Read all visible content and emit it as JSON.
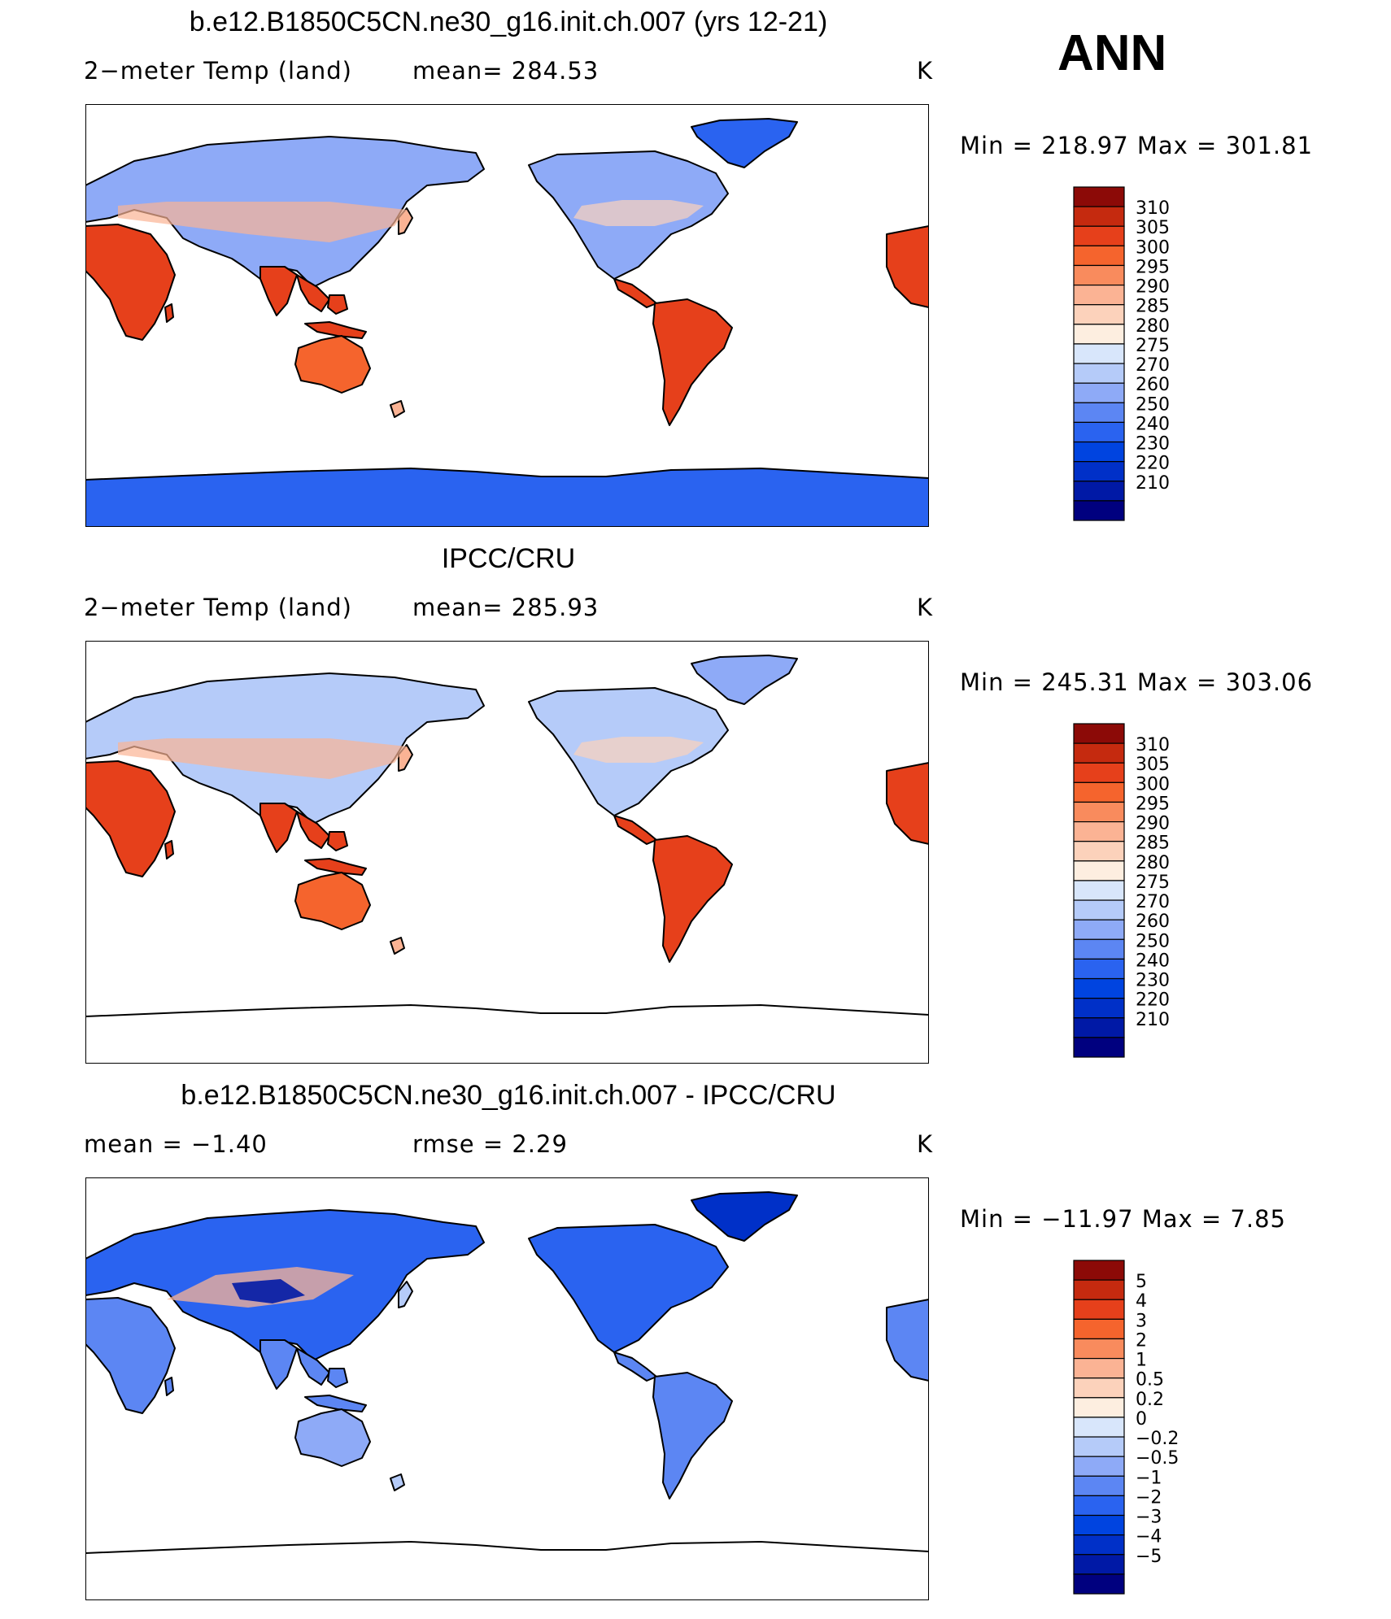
{
  "season": "ANN",
  "colors": {
    "temp_scale": [
      "#00007f",
      "#0019a6",
      "#0030c8",
      "#0044e0",
      "#2a63f0",
      "#5c86f3",
      "#8eaaf7",
      "#b5cbf9",
      "#d8e6fb",
      "#fdeee0",
      "#fcd2bb",
      "#fbb394",
      "#f98b5d",
      "#f5642d",
      "#e6401b",
      "#c52a0f",
      "#8c0a07"
    ],
    "diff_scale": [
      "#00007f",
      "#0019a6",
      "#0030c8",
      "#0044e0",
      "#2a63f0",
      "#5c86f3",
      "#8eaaf7",
      "#b5cbf9",
      "#d8e6fb",
      "#fdeee0",
      "#fcd2bb",
      "#fbb394",
      "#f98b5d",
      "#f5642d",
      "#e6401b",
      "#c52a0f",
      "#8c0a07"
    ]
  },
  "panels": [
    {
      "title": "b.e12.B1850C5CN.ne30_g16.init.ch.007 (yrs 12-21)",
      "left_label": "2−meter Temp (land)",
      "mid_label": "mean=  284.53",
      "units": "K",
      "minmax": "Min  =  218.97  Max  =  301.81",
      "colorbar_labels": [
        "310",
        "305",
        "300",
        "295",
        "290",
        "285",
        "280",
        "275",
        "270",
        "260",
        "250",
        "240",
        "230",
        "220",
        "210"
      ],
      "antarctica_filled": true,
      "style": "model"
    },
    {
      "title": "IPCC/CRU",
      "left_label": "2−meter Temp (land)",
      "mid_label": "mean=  285.93",
      "units": "K",
      "minmax": "Min  =  245.31  Max  =  303.06",
      "colorbar_labels": [
        "310",
        "305",
        "300",
        "295",
        "290",
        "285",
        "280",
        "275",
        "270",
        "260",
        "250",
        "240",
        "230",
        "220",
        "210"
      ],
      "antarctica_filled": false,
      "style": "obs"
    },
    {
      "title": "b.e12.B1850C5CN.ne30_g16.init.ch.007 - IPCC/CRU",
      "left_label": "mean  =    −1.40",
      "mid_label": "rmse  =     2.29",
      "units": "K",
      "minmax": "Min  =  −11.97  Max  =      7.85",
      "colorbar_labels": [
        "5",
        "4",
        "3",
        "2",
        "1",
        "0.5",
        "0.2",
        "0",
        "−0.2",
        "−0.5",
        "−1",
        "−2",
        "−3",
        "−4",
        "−5"
      ],
      "antarctica_filled": false,
      "style": "diff"
    }
  ]
}
